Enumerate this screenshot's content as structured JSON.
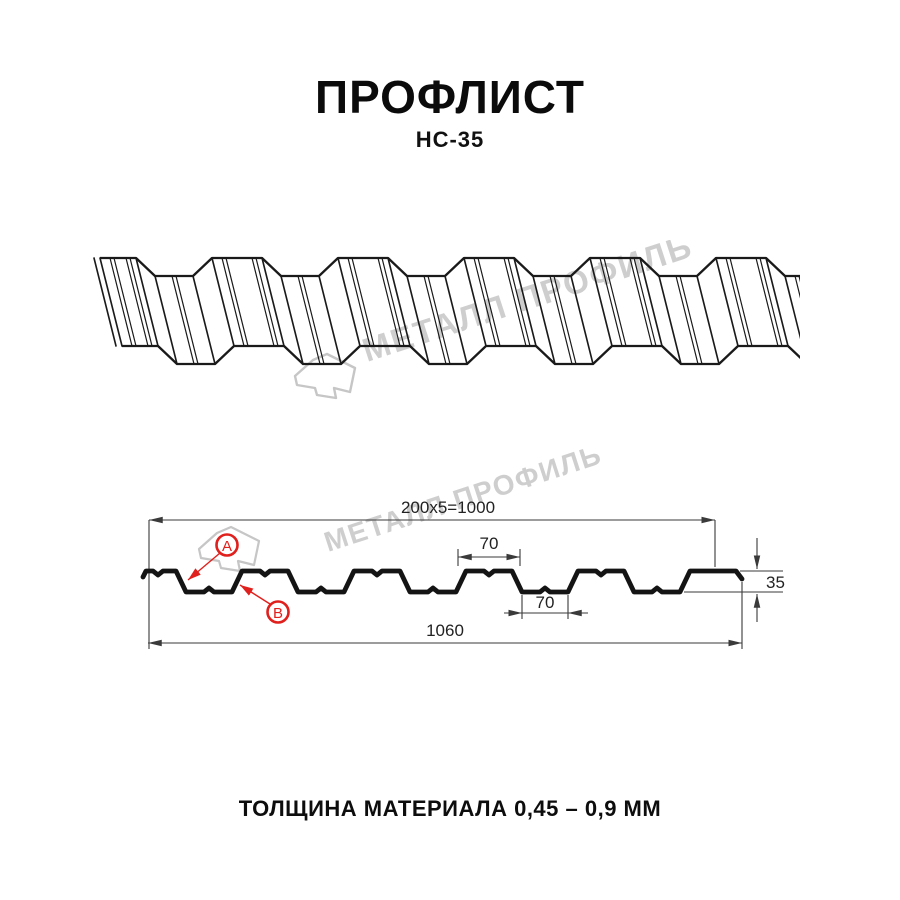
{
  "header": {
    "title": "ПРОФЛИСТ",
    "subtitle": "НС-35"
  },
  "watermark": {
    "brand": "МЕТАЛЛ ПРОФИЛЬ"
  },
  "cross_section": {
    "marker_a": "A",
    "marker_b": "B",
    "dimensions": {
      "pitch": "200x5=1000",
      "crest_width": "70",
      "valley_width": "70",
      "height": "35",
      "overall_width": "1060"
    }
  },
  "footer": {
    "text": "ТОЛЩИНА МАТЕРИАЛА 0,45 – 0,9 ММ"
  },
  "colors": {
    "accent_red": "#e0201c",
    "line": "#1a1a1a",
    "watermark": "#c6c6c6"
  }
}
